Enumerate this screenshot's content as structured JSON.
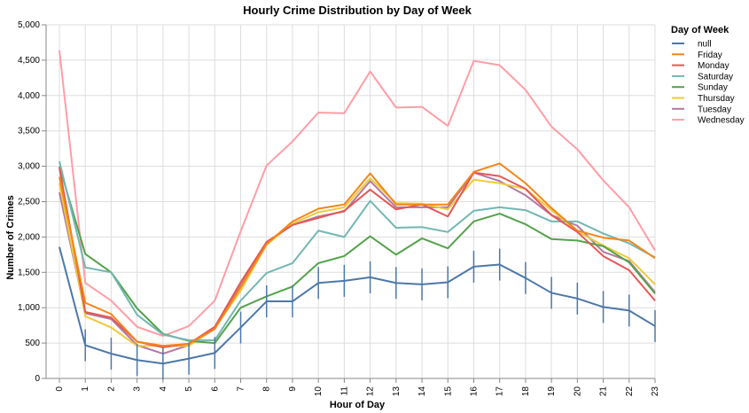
{
  "chart_data": {
    "type": "line",
    "title": "Hourly Crime Distribution by Day of Week",
    "xlabel": "Hour of Day",
    "ylabel": "Number of Crimes",
    "ylim": [
      0,
      5000
    ],
    "y_ticks": [
      "0",
      "500",
      "1,000",
      "1,500",
      "2,000",
      "2,500",
      "3,000",
      "3,500",
      "4,000",
      "4,500",
      "5,000"
    ],
    "y_tick_values": [
      0,
      500,
      1000,
      1500,
      2000,
      2500,
      3000,
      3500,
      4000,
      4500,
      5000
    ],
    "x": [
      0,
      1,
      2,
      3,
      4,
      5,
      6,
      7,
      8,
      9,
      10,
      11,
      12,
      13,
      14,
      15,
      16,
      17,
      18,
      19,
      20,
      21,
      22,
      23
    ],
    "x_tick_labels": [
      "0",
      "1",
      "2",
      "3",
      "4",
      "5",
      "6",
      "7",
      "8",
      "9",
      "10",
      "11",
      "12",
      "13",
      "14",
      "15",
      "16",
      "17",
      "18",
      "19",
      "20",
      "21",
      "22",
      "23"
    ],
    "grid": true,
    "legend_title": "Day of Week",
    "legend_position": "right",
    "series": [
      {
        "name": "null",
        "color": "#4c78a8",
        "values": [
          1860,
          470,
          350,
          260,
          210,
          280,
          360,
          720,
          1090,
          1090,
          1350,
          1380,
          1430,
          1350,
          1330,
          1360,
          1580,
          1610,
          1420,
          1210,
          1130,
          1010,
          960,
          740
        ]
      },
      {
        "name": "Friday",
        "color": "#f58518",
        "values": [
          2850,
          1070,
          910,
          520,
          460,
          490,
          700,
          1290,
          1900,
          2220,
          2400,
          2460,
          2900,
          2460,
          2460,
          2460,
          2920,
          3040,
          2760,
          2410,
          2090,
          1990,
          1950,
          1700
        ]
      },
      {
        "name": "Monday",
        "color": "#e45756",
        "values": [
          2980,
          940,
          860,
          520,
          440,
          490,
          730,
          1360,
          1930,
          2170,
          2270,
          2370,
          2670,
          2390,
          2460,
          2290,
          2910,
          2860,
          2680,
          2310,
          2070,
          1730,
          1530,
          1100
        ]
      },
      {
        "name": "Saturday",
        "color": "#72b7b2",
        "values": [
          3070,
          1570,
          1500,
          900,
          620,
          540,
          540,
          1100,
          1490,
          1630,
          2090,
          2000,
          2510,
          2130,
          2140,
          2070,
          2370,
          2420,
          2380,
          2220,
          2220,
          2050,
          1910,
          1710
        ]
      },
      {
        "name": "Sunday",
        "color": "#54a24b",
        "values": [
          3000,
          1760,
          1500,
          990,
          630,
          530,
          500,
          1000,
          1160,
          1300,
          1630,
          1730,
          2010,
          1750,
          1980,
          1840,
          2220,
          2330,
          2180,
          1970,
          1950,
          1870,
          1640,
          1200
        ]
      },
      {
        "name": "Thursday",
        "color": "#eeca3b",
        "values": [
          2760,
          880,
          720,
          460,
          460,
          460,
          710,
          1240,
          1890,
          2190,
          2350,
          2420,
          2830,
          2480,
          2470,
          2390,
          2810,
          2760,
          2680,
          2380,
          2080,
          1880,
          1700,
          1330
        ]
      },
      {
        "name": "Tuesday",
        "color": "#b279a2",
        "values": [
          2630,
          920,
          840,
          470,
          350,
          470,
          700,
          1310,
          1920,
          2170,
          2290,
          2360,
          2790,
          2420,
          2420,
          2420,
          2910,
          2790,
          2590,
          2310,
          2160,
          1790,
          1660,
          1220
        ]
      },
      {
        "name": "Wednesday",
        "color": "#ff9da6",
        "values": [
          4640,
          1350,
          1100,
          730,
          600,
          740,
          1100,
          2080,
          3010,
          3350,
          3760,
          3750,
          4340,
          3830,
          3840,
          3570,
          4490,
          4430,
          4080,
          3560,
          3240,
          2800,
          2420,
          1810
        ]
      }
    ]
  }
}
